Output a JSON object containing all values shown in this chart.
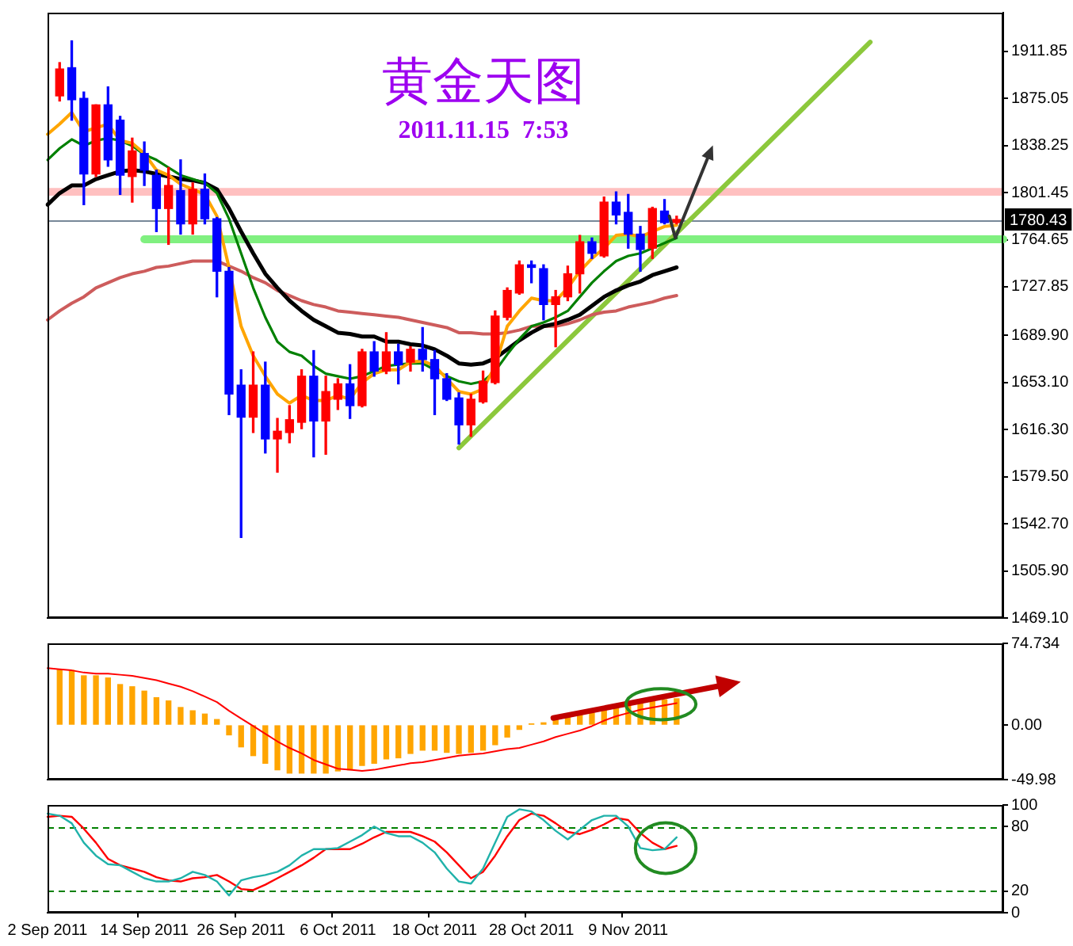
{
  "chart_data": [
    {
      "type": "candlestick",
      "title": "黄金天图",
      "subtitle": "2011.11.15  7:53",
      "categories": [
        null,
        null,
        null,
        null,
        null,
        null,
        null,
        null,
        null,
        null,
        null,
        null,
        null,
        null,
        null,
        null,
        null,
        null,
        null,
        null,
        null,
        null,
        null,
        null,
        null,
        null,
        null,
        null,
        null,
        null,
        null,
        null,
        null,
        null,
        null,
        null,
        null,
        null,
        null,
        null,
        null,
        null,
        null,
        null,
        null,
        null,
        null,
        null,
        null,
        null,
        null,
        null,
        null,
        null,
        null,
        null,
        null,
        null,
        null,
        null,
        null,
        null,
        null,
        null,
        null,
        null,
        null,
        null,
        null,
        null,
        null,
        null,
        null,
        null,
        null,
        null,
        null,
        null,
        null,
        null
      ],
      "ohlc": [
        null,
        [
          1877,
          1903,
          1873,
          1898
        ],
        [
          1899,
          1920,
          1858,
          1874
        ],
        [
          1875,
          1880,
          1792,
          1816
        ],
        [
          1816,
          1870,
          1814,
          1870
        ],
        [
          1870,
          1884,
          1822,
          1827
        ],
        [
          1858,
          1861,
          1800,
          1815
        ],
        [
          1814,
          1844,
          1794,
          1834
        ],
        [
          1832,
          1841,
          1807,
          1819
        ],
        [
          1815,
          1819,
          1771,
          1789
        ],
        [
          1789,
          1821,
          1761,
          1807
        ],
        [
          1803,
          1827,
          1769,
          1777
        ],
        [
          1777,
          1809,
          1769,
          1804
        ],
        [
          1804,
          1816,
          1777,
          1781
        ],
        [
          1781,
          1782,
          1720,
          1740
        ],
        [
          1740,
          1743,
          1628,
          1644
        ],
        [
          1651,
          1663,
          1532,
          1626
        ],
        [
          1626,
          1677,
          1614,
          1651
        ],
        [
          1651,
          1669,
          1598,
          1609
        ],
        [
          1609,
          1625,
          1583,
          1615
        ],
        [
          1614,
          1635,
          1606,
          1624
        ],
        [
          1622,
          1663,
          1617,
          1658
        ],
        [
          1658,
          1678,
          1595,
          1623
        ],
        [
          1623,
          1658,
          1597,
          1646
        ],
        [
          1640,
          1656,
          1632,
          1652
        ],
        [
          1652,
          1667,
          1625,
          1635
        ],
        [
          1635,
          1679,
          1634,
          1677
        ],
        [
          1677,
          1685,
          1658,
          1662
        ],
        [
          1662,
          1692,
          1660,
          1677
        ],
        [
          1677,
          1683,
          1652,
          1667
        ],
        [
          1669,
          1681,
          1662,
          1679
        ],
        [
          1679,
          1696,
          1662,
          1671
        ],
        [
          1671,
          1678,
          1628,
          1656
        ],
        [
          1656,
          1660,
          1639,
          1640
        ],
        [
          1641,
          1645,
          1605,
          1620
        ],
        [
          1620,
          1644,
          1611,
          1640
        ],
        [
          1638,
          1662,
          1637,
          1654
        ],
        [
          1653,
          1709,
          1652,
          1705
        ],
        [
          1704,
          1727,
          1702,
          1725
        ],
        [
          1723,
          1748,
          1722,
          1745
        ],
        [
          1745,
          1748,
          1731,
          1743
        ],
        [
          1742,
          1745,
          1702,
          1714
        ],
        [
          1714,
          1725,
          1681,
          1720
        ],
        [
          1720,
          1744,
          1717,
          1738
        ],
        [
          1738,
          1768,
          1723,
          1763
        ],
        [
          1763,
          1766,
          1750,
          1754
        ],
        [
          1752,
          1798,
          1751,
          1794
        ],
        [
          1794,
          1802,
          1777,
          1784
        ],
        [
          1786,
          1800,
          1758,
          1769
        ],
        [
          1769,
          1775,
          1740,
          1757
        ],
        [
          1758,
          1790,
          1750,
          1789
        ],
        [
          1787,
          1796,
          1777,
          1778
        ],
        [
          1778,
          1783,
          1777,
          1780.43
        ],
        null,
        null,
        null,
        null,
        null,
        null,
        null,
        null,
        null,
        null,
        null,
        null,
        null,
        null,
        null,
        null,
        null,
        null,
        null,
        null,
        null,
        null,
        null,
        null,
        null,
        null,
        null
      ],
      "colors": [
        null,
        "#ff0000",
        "#0000ff",
        "#0000ff",
        "#ff0000",
        "#0000ff",
        "#0000ff",
        "#ff0000",
        "#0000ff",
        "#0000ff",
        "#ff0000",
        "#0000ff",
        "#ff0000",
        "#0000ff",
        "#0000ff",
        "#0000ff",
        "#0000ff",
        "#ff0000",
        "#0000ff",
        "#ff0000",
        "#ff0000",
        "#ff0000",
        "#0000ff",
        "#ff0000",
        "#ff0000",
        "#0000ff",
        "#ff0000",
        "#0000ff",
        "#ff0000",
        "#0000ff",
        "#ff0000",
        "#0000ff",
        "#0000ff",
        "#0000ff",
        "#0000ff",
        "#ff0000",
        "#ff0000",
        "#ff0000",
        "#ff0000",
        "#ff0000",
        "#0000ff",
        "#0000ff",
        "#ff0000",
        "#ff0000",
        "#ff0000",
        "#0000ff",
        "#ff0000",
        "#0000ff",
        "#0000ff",
        "#0000ff",
        "#ff0000",
        "#0000ff",
        "#ff0000",
        null,
        null,
        null,
        null,
        null,
        null,
        null,
        null,
        null,
        null,
        null,
        null,
        null,
        null,
        null,
        null,
        null,
        null,
        null,
        null,
        null,
        null,
        null,
        null,
        null,
        null,
        null
      ],
      "series": [
        {
          "type": "line",
          "color": "#ffa500",
          "values": [
            1847,
            1855,
            1864,
            1849,
            1852,
            1855,
            1842,
            1840,
            1832,
            1819,
            1815,
            1808,
            1804,
            1800,
            1783,
            1743,
            1697,
            1674,
            1658,
            1644,
            1637,
            1643,
            1639,
            1639,
            1643,
            1640,
            1653,
            1660,
            1663,
            1663,
            1669,
            1670,
            1666,
            1656,
            1646,
            1644,
            1648,
            1666,
            1697,
            1709,
            1719,
            1717,
            1717,
            1727,
            1740,
            1750,
            1758,
            1768,
            1769,
            1767,
            1771,
            1775,
            1776,
            null,
            null,
            null,
            null,
            null,
            null,
            null,
            null,
            null,
            null,
            null,
            null,
            null,
            null,
            null,
            null,
            null,
            null,
            null,
            null,
            null,
            null,
            null,
            null,
            null,
            null,
            null
          ]
        },
        {
          "type": "line",
          "color": "#008000",
          "values": [
            1827,
            1836,
            1843,
            1838,
            1842,
            1844,
            1842,
            1838,
            1831,
            1827,
            1821,
            1815,
            1812,
            1809,
            1801,
            1781,
            1754,
            1727,
            1704,
            1685,
            1677,
            1674,
            1666,
            1660,
            1658,
            1656,
            1658,
            1662,
            1666,
            1667,
            1668,
            1668,
            1663,
            1658,
            1654,
            1652,
            1654,
            1662,
            1675,
            1687,
            1697,
            1700,
            1704,
            1709,
            1720,
            1731,
            1740,
            1748,
            1752,
            1754,
            1758,
            1762,
            1766,
            null,
            null,
            null,
            null,
            null,
            null,
            null,
            null,
            null,
            null,
            null,
            null,
            null,
            null,
            null,
            null,
            null,
            null,
            null,
            null,
            null,
            null,
            null,
            null,
            null,
            null,
            null
          ]
        },
        {
          "type": "line",
          "color": "#000000",
          "values": [
            1792,
            1801,
            1807,
            1807,
            1812,
            1815,
            1818,
            1819,
            1818,
            1816,
            1814,
            1812,
            1811,
            1809,
            1804,
            1789,
            1771,
            1754,
            1738,
            1727,
            1717,
            1709,
            1702,
            1697,
            1692,
            1691,
            1689,
            1689,
            1685,
            1685,
            1683,
            1682,
            1679,
            1674,
            1668,
            1667,
            1668,
            1672,
            1679,
            1686,
            1692,
            1697,
            1699,
            1702,
            1706,
            1713,
            1720,
            1725,
            1729,
            1732,
            1737,
            1740,
            1743,
            null,
            null,
            null,
            null,
            null,
            null,
            null,
            null,
            null,
            null,
            null,
            null,
            null,
            null,
            null,
            null,
            null,
            null,
            null,
            null,
            null,
            null,
            null,
            null,
            null,
            null,
            null
          ]
        },
        {
          "type": "line",
          "color": "#cd5c5c",
          "values": [
            1702,
            1709,
            1715,
            1720,
            1727,
            1731,
            1735,
            1738,
            1740,
            1743,
            1744,
            1746,
            1748,
            1748,
            1748,
            1744,
            1740,
            1735,
            1731,
            1725,
            1721,
            1717,
            1714,
            1712,
            1709,
            1708,
            1707,
            1706,
            1705,
            1704,
            1702,
            1700,
            1698,
            1696,
            1692,
            1692,
            1691,
            1691,
            1692,
            1694,
            1697,
            1697,
            1697,
            1699,
            1702,
            1706,
            1708,
            1709,
            1712,
            1714,
            1716,
            1719,
            1721,
            null,
            null,
            null,
            null,
            null,
            null,
            null,
            null,
            null,
            null,
            null,
            null,
            null,
            null,
            null,
            null,
            null,
            null,
            null,
            null,
            null,
            null,
            null,
            null,
            null,
            null,
            null
          ]
        },
        {
          "type": "line",
          "color": "#8cc83c",
          "values": [
            null,
            null,
            null,
            null,
            null,
            null,
            null,
            null,
            null,
            null,
            null,
            null,
            null,
            null,
            null,
            null,
            null,
            null,
            null,
            null,
            null,
            null,
            null,
            null,
            null,
            null,
            null,
            null,
            null,
            null,
            null,
            null,
            null,
            null,
            1602,
            null,
            null,
            null,
            null,
            null,
            null,
            null,
            null,
            null,
            null,
            null,
            null,
            null,
            null,
            null,
            null,
            null,
            null,
            null,
            null,
            null,
            null,
            null,
            null,
            null,
            null,
            null,
            null,
            null,
            null,
            null,
            null,
            null,
            1919,
            null,
            null,
            null,
            null,
            null,
            null,
            null,
            null,
            null,
            null,
            null
          ]
        },
        {
          "type": "line",
          "color": "#80f080",
          "values": [
            null,
            null,
            null,
            null,
            null,
            null,
            null,
            null,
            1765,
            null,
            null,
            null,
            null,
            null,
            null,
            null,
            null,
            null,
            null,
            null,
            null,
            null,
            null,
            null,
            null,
            null,
            null,
            null,
            null,
            null,
            null,
            null,
            null,
            null,
            null,
            null,
            null,
            null,
            null,
            null,
            null,
            null,
            null,
            null,
            null,
            null,
            null,
            null,
            null,
            null,
            null,
            null,
            null,
            null,
            null,
            null,
            null,
            null,
            null,
            null,
            null,
            null,
            null,
            null,
            null,
            null,
            null,
            null,
            null,
            null,
            null,
            null,
            null,
            null,
            null,
            null,
            null,
            null,
            null,
            1765
          ]
        }
      ],
      "ylim": [
        1469.1,
        1942
      ],
      "yticks": [
        1911.85,
        1875.05,
        1838.25,
        1801.45,
        1764.65,
        1727.85,
        {
          "value": 1689.9,
          "label": "1689.90"
        },
        {
          "value": 1653.1,
          "label": "1653.10"
        },
        {
          "value": 1616.3,
          "label": "1616.30"
        },
        {
          "value": 1579.5,
          "label": "1579.50"
        },
        {
          "value": 1542.7,
          "label": "1542.70"
        },
        {
          "value": 1505.9,
          "label": "1505.90"
        },
        {
          "value": 1469.1,
          "label": "1469.10"
        }
      ],
      "ref_lines": [
        {
          "axis": "y",
          "value": 1780.43,
          "label": "1780.43",
          "color": "#778899"
        }
      ],
      "bands": [
        {
          "axis": "y",
          "from": 1799,
          "to": 1805,
          "color": "#ffc0c0"
        }
      ],
      "tick_labels": "y",
      "marker": "none"
    },
    {
      "type": "bar",
      "categories": [
        null,
        null,
        null,
        null,
        null,
        null,
        null,
        null,
        null,
        null,
        null,
        null,
        null,
        null,
        null,
        null,
        null,
        null,
        null,
        null,
        null,
        null,
        null,
        null,
        null,
        null,
        null,
        null,
        null,
        null,
        null,
        null,
        null,
        null,
        null,
        null,
        null,
        null,
        null,
        null,
        null,
        null,
        null,
        null,
        null,
        null,
        null,
        null,
        null,
        null,
        null,
        null,
        null,
        null,
        null,
        null,
        null,
        null,
        null,
        null,
        null,
        null,
        null,
        null,
        null,
        null,
        null,
        null,
        null,
        null,
        null,
        null,
        null,
        null,
        null,
        null,
        null,
        null,
        null,
        null
      ],
      "series": [
        {
          "color": "#ffa500",
          "values": [
            null,
            51,
            50,
            45,
            45,
            43,
            37,
            35,
            31,
            25,
            22,
            16,
            13,
            10,
            5,
            -9,
            -20,
            -28,
            -35,
            -41,
            -44,
            -44,
            -44,
            -44,
            -42,
            -41,
            -37,
            -35,
            -31,
            -30,
            -26,
            -23,
            -23,
            -25,
            -26,
            -25,
            -23,
            -18,
            -11,
            -4,
            1,
            2,
            6,
            8,
            9,
            11,
            16,
            19,
            20,
            21,
            22,
            23,
            24,
            null,
            null,
            null,
            null,
            null,
            null,
            null,
            null,
            null,
            null,
            null,
            null,
            null,
            null,
            null,
            null,
            null,
            null,
            null,
            null,
            null,
            null,
            null,
            null,
            null,
            null,
            null
          ]
        },
        {
          "type": "line",
          "color": "#ff0000",
          "values": [
            52,
            51,
            50,
            48,
            47,
            47,
            46,
            45,
            43,
            41,
            38,
            35,
            31,
            26,
            21,
            13,
            6,
            -1,
            -8,
            -15,
            -21,
            -26,
            -32,
            -36,
            -40,
            -41,
            -42,
            -41,
            -39,
            -37,
            -35,
            -34,
            -32,
            -30,
            -28,
            -27,
            -26,
            -24,
            -22,
            -21,
            -18,
            -15,
            -11,
            -8,
            -5,
            -1,
            4,
            8,
            11,
            14,
            16,
            18,
            20,
            null,
            null,
            null,
            null,
            null,
            null,
            null,
            null,
            null,
            null,
            null,
            null,
            null,
            null,
            null,
            null,
            null,
            null,
            null,
            null,
            null,
            null,
            null,
            null,
            null,
            null,
            null
          ]
        }
      ],
      "ylim": [
        -49.98,
        74.734
      ],
      "yticks": [
        -49.98,
        {
          "value": 0,
          "label": "0.00"
        },
        74.734
      ],
      "tick_labels": "y",
      "marker": "none"
    },
    {
      "type": "line",
      "categories": [
        "2 Sep 2011",
        null,
        null,
        null,
        null,
        null,
        null,
        null,
        "14 Sep 2011",
        null,
        null,
        null,
        null,
        null,
        null,
        null,
        "26 Sep 2011",
        null,
        null,
        null,
        null,
        null,
        null,
        null,
        "6 Oct 2011",
        null,
        null,
        null,
        null,
        null,
        null,
        null,
        "18 Oct 2011",
        null,
        null,
        null,
        null,
        null,
        null,
        null,
        "28 Oct 2011",
        null,
        null,
        null,
        null,
        null,
        null,
        null,
        "9 Nov 2011",
        null,
        null,
        null,
        null,
        null,
        null,
        null,
        null,
        null,
        null,
        null,
        null,
        null,
        null,
        null,
        null,
        null,
        null,
        null,
        null,
        null,
        null,
        null,
        null,
        null,
        null,
        null,
        null,
        null,
        null,
        null
      ],
      "series": [
        {
          "color": "#20b2aa",
          "values": [
            92,
            90,
            83,
            65,
            53,
            45,
            44,
            38,
            32,
            29,
            29,
            32,
            38,
            35,
            29,
            16,
            30,
            33,
            35,
            38,
            44,
            53,
            59,
            59,
            60,
            66,
            72,
            80,
            74,
            71,
            71,
            65,
            56,
            41,
            29,
            27,
            41,
            65,
            89,
            96,
            94,
            86,
            76,
            68,
            77,
            86,
            90,
            90,
            80,
            60,
            58,
            59,
            70,
            null,
            null,
            null,
            null,
            null,
            null,
            null,
            null,
            null,
            null,
            null,
            null,
            null,
            null,
            null,
            null,
            null,
            null,
            null,
            null,
            null,
            null,
            null,
            null,
            null,
            null,
            null
          ]
        },
        {
          "color": "#ff0000",
          "values": [
            89,
            90,
            89,
            78,
            65,
            50,
            44,
            41,
            38,
            33,
            30,
            29,
            32,
            33,
            35,
            29,
            22,
            21,
            26,
            32,
            38,
            44,
            51,
            59,
            59,
            59,
            64,
            70,
            75,
            75,
            75,
            71,
            66,
            56,
            44,
            32,
            38,
            53,
            71,
            86,
            92,
            90,
            83,
            75,
            73,
            77,
            82,
            88,
            86,
            74,
            65,
            59,
            62,
            null,
            null,
            null,
            null,
            null,
            null,
            null,
            null,
            null,
            null,
            null,
            null,
            null,
            null,
            null,
            null,
            null,
            null,
            null,
            null,
            null,
            null,
            null,
            null,
            null,
            null,
            null
          ]
        }
      ],
      "ylim": [
        0,
        100
      ],
      "yticks": [
        0,
        20,
        80,
        100
      ],
      "ref_lines": [
        {
          "axis": "y",
          "value": 80,
          "color": "#008000",
          "line_style": "dashed"
        },
        {
          "axis": "y",
          "value": 20,
          "color": "#008000",
          "line_style": "dashed"
        }
      ],
      "marker": "none"
    }
  ]
}
